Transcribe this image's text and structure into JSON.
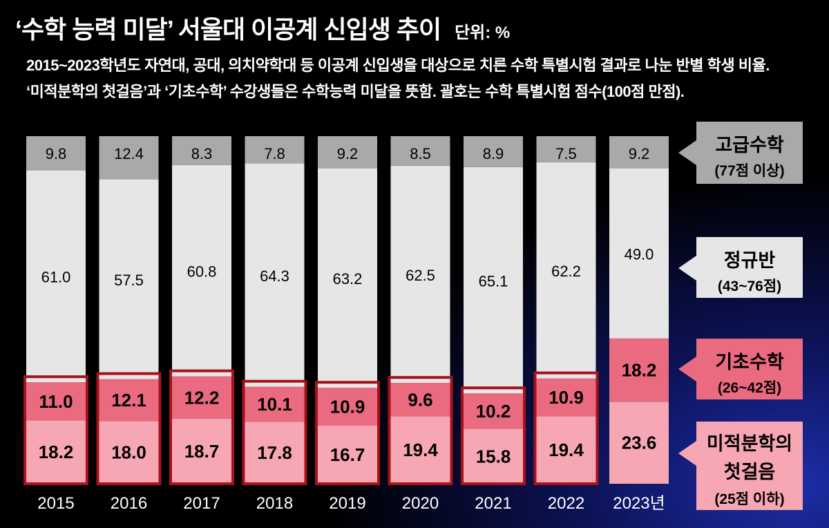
{
  "header": {
    "title": "‘수학 능력 미달’ 서울대 이공계 신입생 추이",
    "unit": "단위: %"
  },
  "description": [
    "2015~2023학년도 자연대, 공대, 의치약학대 등 이공계 신입생을 대상으로 치른 수학 특별시험 결과로 나눈 반별 학생 비율.",
    "‘미적분학의 첫걸음’과 ‘기초수학’ 수강생들은 수학능력 미달을 뜻함. 괄호는 수학 특별시험 점수(100점 만점)."
  ],
  "legend": {
    "advanced": {
      "title": "고급수학",
      "sub": "(77점 이상)"
    },
    "regular": {
      "title": "정규반",
      "sub": "(43~76점)"
    },
    "basic": {
      "title": "기초수학",
      "sub": "(26~42점)"
    },
    "calculus": {
      "title_line1": "미적분학의",
      "title_line2": "첫걸음",
      "sub": "(25점 이하)"
    }
  },
  "chart_data": {
    "type": "bar",
    "stacked": true,
    "categories": [
      "2015",
      "2016",
      "2017",
      "2018",
      "2019",
      "2020",
      "2021",
      "2022",
      "2023년"
    ],
    "series": [
      {
        "name": "미적분학의 첫걸음",
        "values": [
          18.2,
          18.0,
          18.7,
          17.8,
          16.7,
          19.4,
          15.8,
          19.4,
          23.6
        ],
        "color": "#f7a7b3"
      },
      {
        "name": "기초수학",
        "values": [
          11.0,
          12.1,
          12.2,
          10.1,
          10.9,
          9.6,
          10.2,
          10.9,
          18.2
        ],
        "color": "#ea6a80"
      },
      {
        "name": "정규반",
        "values": [
          61.0,
          57.5,
          60.8,
          64.3,
          63.2,
          62.5,
          65.1,
          62.2,
          49.0
        ],
        "color": "#e6e6e6"
      },
      {
        "name": "고급수학",
        "values": [
          9.8,
          12.4,
          8.3,
          7.8,
          9.2,
          8.5,
          8.9,
          7.5,
          9.2
        ],
        "color": "#a9a9a9"
      }
    ],
    "highlight_color": "#a5121c",
    "highlighted_series": [
      "미적분학의 첫걸음",
      "기초수학"
    ],
    "highlighted_categories": [
      "2015",
      "2016",
      "2017",
      "2018",
      "2019",
      "2020",
      "2021",
      "2022"
    ],
    "ylim": [
      0,
      100
    ],
    "unit": "%"
  }
}
